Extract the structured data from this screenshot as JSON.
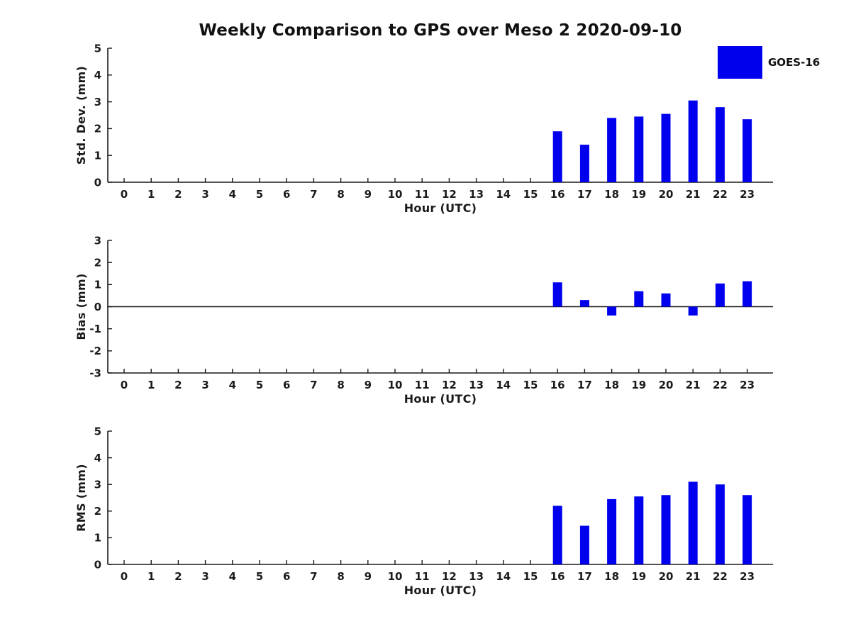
{
  "title": "Weekly Comparison to GPS over Meso 2 2020-09-10",
  "legend": {
    "label": "GOES-16",
    "color": "#0000ee"
  },
  "chart_data": [
    {
      "type": "bar",
      "name": "std-dev",
      "title": "",
      "xlabel": "Hour (UTC)",
      "ylabel": "Std. Dev. (mm)",
      "ylim": [
        0,
        5
      ],
      "yticks": [
        0,
        1,
        2,
        3,
        4,
        5
      ],
      "categories": [
        0,
        1,
        2,
        3,
        4,
        5,
        6,
        7,
        8,
        9,
        10,
        11,
        12,
        13,
        14,
        15,
        16,
        17,
        18,
        19,
        20,
        21,
        22,
        23
      ],
      "grid": false,
      "series": [
        {
          "name": "GOES-16",
          "color": "#0000ee",
          "values": [
            0,
            0,
            0,
            0,
            0,
            0,
            0,
            0,
            0,
            0,
            0,
            0,
            0,
            0,
            0,
            0,
            1.9,
            1.4,
            2.4,
            2.45,
            2.55,
            3.05,
            2.8,
            2.35
          ]
        }
      ]
    },
    {
      "type": "bar",
      "name": "bias",
      "title": "",
      "xlabel": "Hour (UTC)",
      "ylabel": "Bias (mm)",
      "ylim": [
        -3,
        3
      ],
      "yticks": [
        -3,
        -2,
        -1,
        0,
        1,
        2,
        3
      ],
      "categories": [
        0,
        1,
        2,
        3,
        4,
        5,
        6,
        7,
        8,
        9,
        10,
        11,
        12,
        13,
        14,
        15,
        16,
        17,
        18,
        19,
        20,
        21,
        22,
        23
      ],
      "grid": false,
      "zero_line": true,
      "series": [
        {
          "name": "GOES-16",
          "color": "#0000ee",
          "values": [
            0,
            0,
            0,
            0,
            0,
            0,
            0,
            0,
            0,
            0,
            0,
            0,
            0,
            0,
            0,
            0,
            1.1,
            0.3,
            -0.4,
            0.7,
            0.6,
            -0.4,
            1.05,
            1.15
          ]
        }
      ]
    },
    {
      "type": "bar",
      "name": "rms",
      "title": "",
      "xlabel": "Hour (UTC)",
      "ylabel": "RMS (mm)",
      "ylim": [
        0,
        5
      ],
      "yticks": [
        0,
        1,
        2,
        3,
        4,
        5
      ],
      "categories": [
        0,
        1,
        2,
        3,
        4,
        5,
        6,
        7,
        8,
        9,
        10,
        11,
        12,
        13,
        14,
        15,
        16,
        17,
        18,
        19,
        20,
        21,
        22,
        23
      ],
      "grid": false,
      "series": [
        {
          "name": "GOES-16",
          "color": "#0000ee",
          "values": [
            0,
            0,
            0,
            0,
            0,
            0,
            0,
            0,
            0,
            0,
            0,
            0,
            0,
            0,
            0,
            0,
            2.2,
            1.45,
            2.45,
            2.55,
            2.6,
            3.1,
            3.0,
            2.6
          ]
        }
      ]
    }
  ]
}
